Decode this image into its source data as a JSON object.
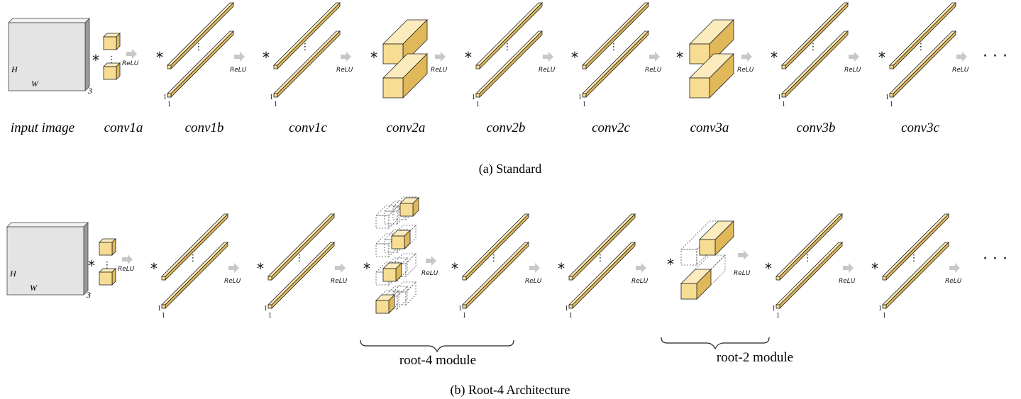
{
  "standard": {
    "caption": "(a) Standard",
    "layers": [
      "input image",
      "conv1a",
      "conv1b",
      "conv1c",
      "conv2a",
      "conv2b",
      "conv2c",
      "conv3a",
      "conv3b",
      "conv3c"
    ]
  },
  "root": {
    "caption": "(b) Root-4 Architecture",
    "modules": [
      "root-4 module",
      "root-2 module"
    ]
  },
  "input": {
    "h": "H",
    "w": "W",
    "c": "3"
  },
  "symbols": {
    "conv": "*",
    "relu": "ReLU",
    "one": "1",
    "ellipsis": "· · ·",
    "vdots": "⋮"
  },
  "colors": {
    "filter": "#f7dc93",
    "filter_side": "#e0b85a",
    "filter_top": "#fbebbd",
    "image": "#e4e4e4",
    "arrow": "#c8c8c8"
  }
}
